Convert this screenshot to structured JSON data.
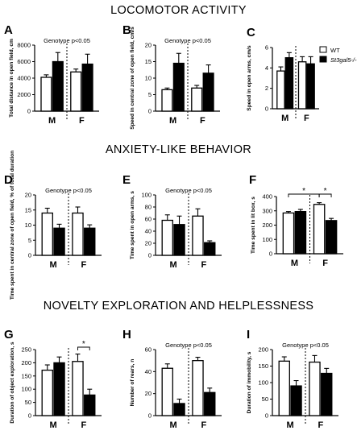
{
  "section_titles": [
    "LOCOMOTOR ACTIVITY",
    "ANXIETY-LIKE BEHAVIOR",
    "NOVELTY EXPLORATION  AND HELPLESSNESS"
  ],
  "legend": {
    "entries": [
      {
        "label": "WT",
        "color": "#ffffff"
      },
      {
        "label": "St3gal5-/-",
        "color": "#000000"
      }
    ]
  },
  "chart_data": [
    {
      "panel": "A",
      "type": "bar",
      "groups": [
        "M",
        "F"
      ],
      "ylabel": "Total distance in open field, cm",
      "yticks": [
        0,
        2000,
        4000,
        6000,
        8000
      ],
      "ylim": [
        0,
        8000
      ],
      "annotation": "Genotype p<0.05",
      "series": [
        {
          "name": "WT",
          "values": [
            4100,
            4750
          ],
          "errors": [
            300,
            350
          ]
        },
        {
          "name": "St3gal5-/-",
          "values": [
            6000,
            5700
          ],
          "errors": [
            1100,
            1200
          ]
        }
      ],
      "brackets": []
    },
    {
      "panel": "B",
      "type": "bar",
      "groups": [
        "M",
        "F"
      ],
      "ylabel": "Speed in central zone of open field, cm/s",
      "yticks": [
        0,
        5,
        10,
        15,
        20
      ],
      "ylim": [
        0,
        20
      ],
      "annotation": "Genotype p<0.05",
      "series": [
        {
          "name": "WT",
          "values": [
            6.5,
            7.0
          ],
          "errors": [
            0.5,
            0.8
          ]
        },
        {
          "name": "St3gal5-/-",
          "values": [
            14.5,
            11.5
          ],
          "errors": [
            3.0,
            2.5
          ]
        }
      ],
      "brackets": []
    },
    {
      "panel": "C",
      "type": "bar",
      "groups": [
        "M",
        "F"
      ],
      "ylabel": "Speed in open arms, cm/s",
      "yticks": [
        0,
        2,
        4,
        6
      ],
      "ylim": [
        0,
        6
      ],
      "annotation": "",
      "series": [
        {
          "name": "WT",
          "values": [
            3.7,
            4.6
          ],
          "errors": [
            0.4,
            0.5
          ]
        },
        {
          "name": "St3gal5-/-",
          "values": [
            5.0,
            4.4
          ],
          "errors": [
            0.5,
            0.7
          ]
        }
      ],
      "brackets": []
    },
    {
      "panel": "D",
      "type": "bar",
      "groups": [
        "M",
        "F"
      ],
      "ylabel": "Time spent in central zone of open field, % of total duration",
      "yticks": [
        0,
        5,
        10,
        15,
        20
      ],
      "ylim": [
        0,
        20
      ],
      "annotation": "Genotype p<0.05",
      "series": [
        {
          "name": "WT",
          "values": [
            14.0,
            14.0
          ],
          "errors": [
            1.6,
            2.0
          ]
        },
        {
          "name": "St3gal5-/-",
          "values": [
            9.0,
            9.0
          ],
          "errors": [
            1.3,
            1.1
          ]
        }
      ],
      "brackets": []
    },
    {
      "panel": "E",
      "type": "bar",
      "groups": [
        "M",
        "F"
      ],
      "ylabel": "Time spent in open arms, s",
      "yticks": [
        0,
        20,
        40,
        60,
        80,
        100
      ],
      "ylim": [
        0,
        100
      ],
      "annotation": "Genotype p<0.05",
      "series": [
        {
          "name": "WT",
          "values": [
            58,
            65
          ],
          "errors": [
            9,
            12
          ]
        },
        {
          "name": "St3gal5-/-",
          "values": [
            51,
            21
          ],
          "errors": [
            14,
            3
          ]
        }
      ],
      "brackets": []
    },
    {
      "panel": "F",
      "type": "bar",
      "groups": [
        "M",
        "F"
      ],
      "ylabel": "Time spent in lit box, s",
      "yticks": [
        0,
        100,
        200,
        300,
        400
      ],
      "ylim": [
        0,
        400
      ],
      "annotation": "",
      "series": [
        {
          "name": "WT",
          "values": [
            285,
            345
          ],
          "errors": [
            10,
            12
          ]
        },
        {
          "name": "St3gal5-/-",
          "values": [
            295,
            232
          ],
          "errors": [
            15,
            15
          ]
        }
      ],
      "brackets": [
        {
          "from": [
            0,
            0
          ],
          "to": [
            1,
            0
          ],
          "label": "*"
        },
        {
          "from": [
            1,
            0
          ],
          "to": [
            1,
            1
          ],
          "label": "*"
        }
      ]
    },
    {
      "panel": "G",
      "type": "bar",
      "groups": [
        "M",
        "F"
      ],
      "ylabel": "Duration of object exploration, s",
      "yticks": [
        0,
        50,
        100,
        150,
        200,
        250
      ],
      "ylim": [
        0,
        250
      ],
      "annotation": "",
      "series": [
        {
          "name": "WT",
          "values": [
            172,
            205
          ],
          "errors": [
            20,
            28
          ]
        },
        {
          "name": "St3gal5-/-",
          "values": [
            200,
            78
          ],
          "errors": [
            22,
            22
          ]
        }
      ],
      "brackets": [
        {
          "from": [
            1,
            0
          ],
          "to": [
            1,
            1
          ],
          "label": "*"
        }
      ]
    },
    {
      "panel": "H",
      "type": "bar",
      "groups": [
        "M",
        "F"
      ],
      "ylabel": "Number of rears, n",
      "yticks": [
        0,
        20,
        40,
        60
      ],
      "ylim": [
        0,
        60
      ],
      "annotation": "Genotype p<0.05",
      "series": [
        {
          "name": "WT",
          "values": [
            43,
            50
          ],
          "errors": [
            4,
            3
          ]
        },
        {
          "name": "St3gal5-/-",
          "values": [
            11,
            21
          ],
          "errors": [
            4,
            4
          ]
        }
      ],
      "brackets": []
    },
    {
      "panel": "I",
      "type": "bar",
      "groups": [
        "M",
        "F"
      ],
      "ylabel": "Duration of immobility, s",
      "yticks": [
        0,
        50,
        100,
        150,
        200
      ],
      "ylim": [
        0,
        200
      ],
      "annotation": "Genotype p<0.05",
      "series": [
        {
          "name": "WT",
          "values": [
            165,
            162
          ],
          "errors": [
            13,
            20
          ]
        },
        {
          "name": "St3gal5-/-",
          "values": [
            90,
            128
          ],
          "errors": [
            16,
            15
          ]
        }
      ],
      "brackets": []
    }
  ]
}
